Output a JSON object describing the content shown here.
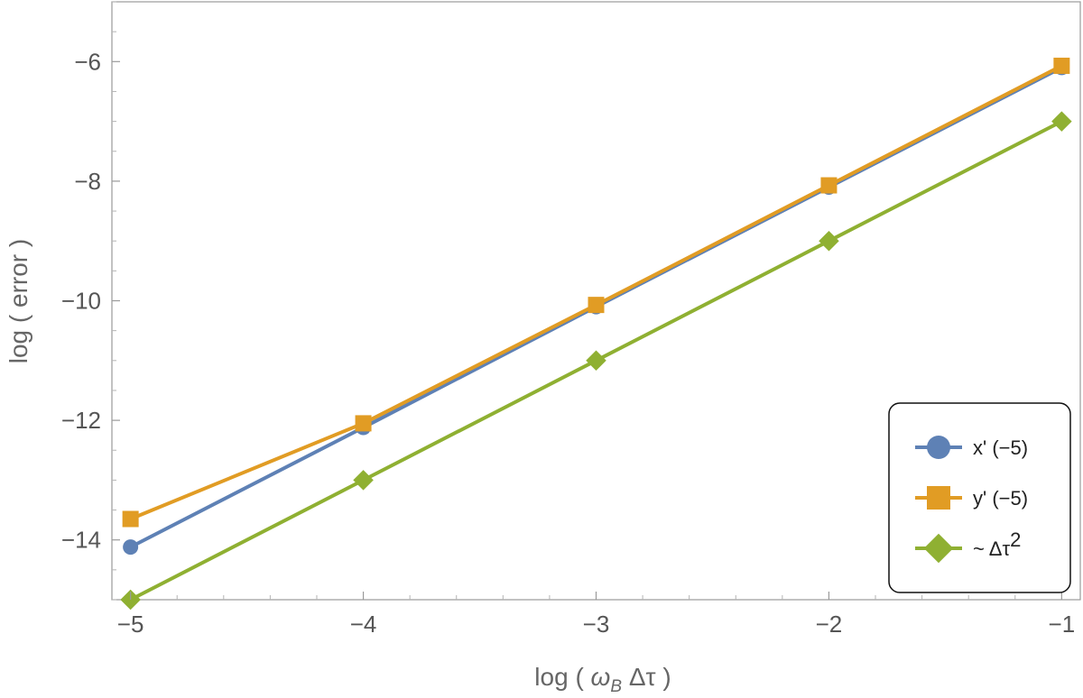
{
  "chart_data": {
    "type": "line",
    "title": "",
    "xlabel": {
      "prefix": "log ( ",
      "omega": "ω",
      "omega_sub": "B",
      "delta_tau": " Δτ",
      "suffix": " )"
    },
    "ylabel": "log ( error )",
    "xlim": [
      -5.08,
      -0.92
    ],
    "ylim": [
      -15,
      -5
    ],
    "x_ticks": [
      -5,
      -4,
      -3,
      -2,
      -1
    ],
    "x_tick_labels": [
      "−5",
      "−4",
      "−3",
      "−2",
      "−1"
    ],
    "y_ticks": [
      -6,
      -8,
      -10,
      -12,
      -14
    ],
    "y_tick_labels": [
      "−6",
      "−8",
      "−10",
      "−12",
      "−14"
    ],
    "grid": false,
    "legend_position": "bottom-right",
    "series": [
      {
        "name": "x' (−5)",
        "marker": "circle",
        "color": "#5e81b5",
        "x": [
          -5,
          -4,
          -3,
          -2,
          -1
        ],
        "y": [
          -14.12,
          -12.12,
          -10.1,
          -8.1,
          -6.1
        ]
      },
      {
        "name": "y' (−5)",
        "marker": "square",
        "color": "#e19c24",
        "x": [
          -5,
          -4,
          -3,
          -2,
          -1
        ],
        "y": [
          -13.65,
          -12.05,
          -10.07,
          -8.07,
          -6.07
        ]
      },
      {
        "name": "~ Δτ",
        "name_superscript": "2",
        "marker": "diamond",
        "color": "#8fb032",
        "x": [
          -5,
          -4,
          -3,
          -2,
          -1
        ],
        "y": [
          -15,
          -13,
          -11,
          -9,
          -7
        ]
      }
    ]
  }
}
